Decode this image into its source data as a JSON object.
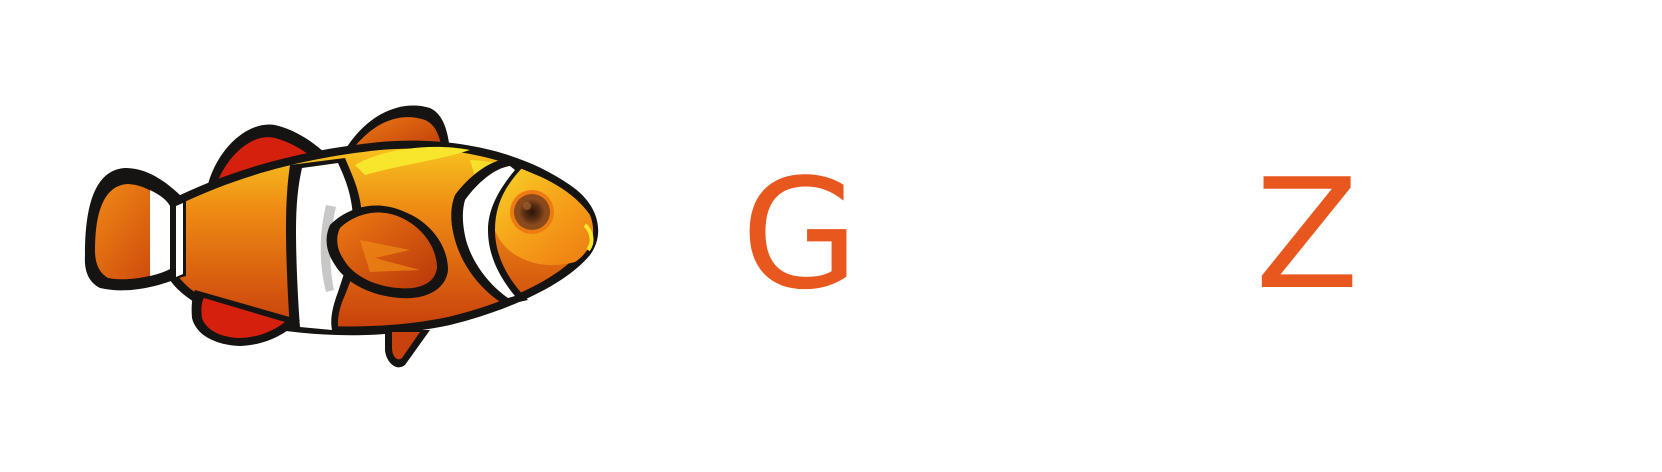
{
  "logo": {
    "letters": [
      "G",
      "Z"
    ],
    "icon": "clownfish-icon"
  },
  "colors": {
    "brand": "#E8571E",
    "fish_orange": "#EE7A12",
    "fish_light": "#F6B21B",
    "fish_yellow": "#F7E62B",
    "fish_dark_orange": "#C9410C",
    "fish_red": "#D5200E",
    "stripe_black": "#161412",
    "stripe_white": "#FFFFFF",
    "stripe_gray": "#C8C8C8",
    "eye_brown": "#5A2E14"
  }
}
